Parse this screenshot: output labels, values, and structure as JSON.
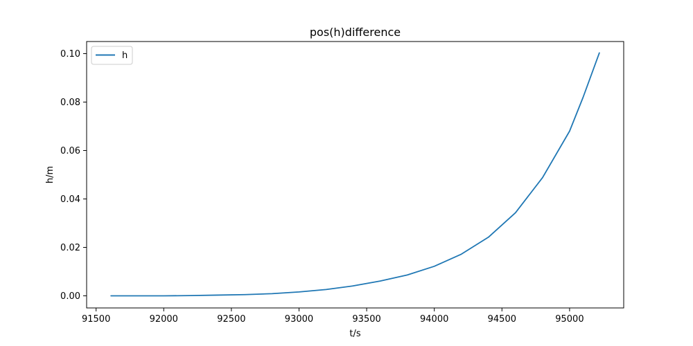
{
  "chart_data": {
    "type": "line",
    "title": "pos(h)difference",
    "xlabel": "t/s",
    "ylabel": "h/m",
    "xlim": [
      91430,
      95400
    ],
    "ylim": [
      -0.005,
      0.105
    ],
    "xticks": [
      91500,
      92000,
      92500,
      93000,
      93500,
      94000,
      94500,
      95000
    ],
    "yticks": [
      0.0,
      0.02,
      0.04,
      0.06,
      0.08,
      0.1
    ],
    "xtick_labels": [
      "91500",
      "92000",
      "92500",
      "93000",
      "93500",
      "94000",
      "94500",
      "95000"
    ],
    "ytick_labels": [
      "0.00",
      "0.02",
      "0.04",
      "0.06",
      "0.08",
      "0.10"
    ],
    "grid": false,
    "legend": {
      "position": "top-left"
    },
    "series": [
      {
        "name": "h",
        "color": "#1f77b4",
        "x": [
          91610,
          91800,
          92000,
          92200,
          92400,
          92600,
          92800,
          93000,
          93200,
          93400,
          93600,
          93800,
          94000,
          94200,
          94400,
          94600,
          94800,
          95000,
          95100,
          95220
        ],
        "y": [
          0.0,
          0.0,
          0.0,
          0.0001,
          0.0003,
          0.0005,
          0.0009,
          0.0016,
          0.0026,
          0.0041,
          0.0061,
          0.0086,
          0.0122,
          0.0172,
          0.0242,
          0.0343,
          0.0488,
          0.068,
          0.082,
          0.1003
        ]
      }
    ]
  }
}
